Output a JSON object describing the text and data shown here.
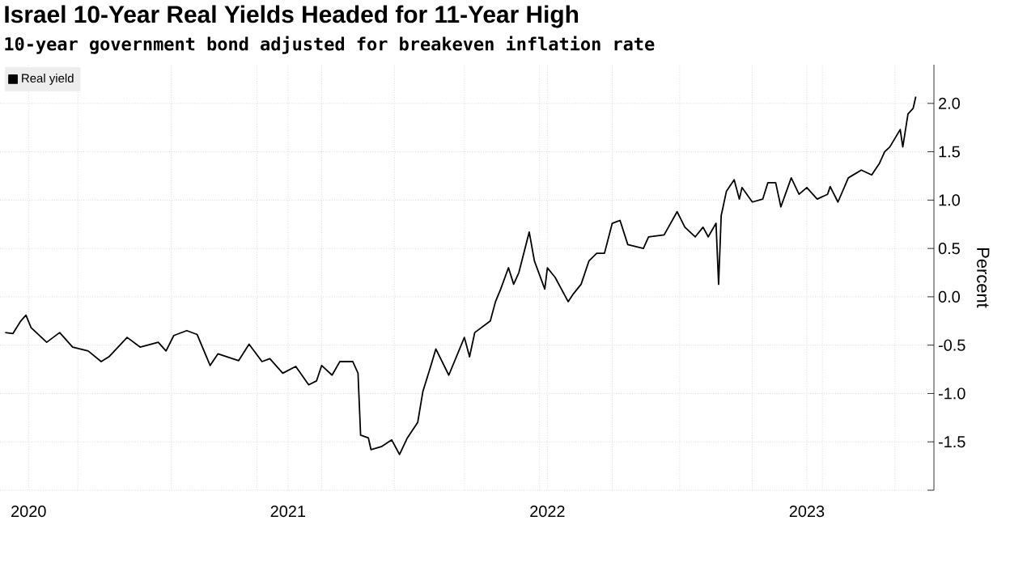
{
  "chart_data": {
    "type": "line",
    "title": "Israel 10-Year Real Yields Headed for 11-Year High",
    "subtitle": "10-year government bond adjusted for breakeven inflation rate",
    "ylabel": "Percent",
    "xlim": [
      2019.89,
      2023.49
    ],
    "ylim": [
      -2.0,
      2.4
    ],
    "xticks": [
      {
        "value": 2020.0,
        "label": "2020"
      },
      {
        "value": 2020.19,
        "label": null
      },
      {
        "value": 2020.55,
        "label": null
      },
      {
        "value": 2020.88,
        "label": null
      },
      {
        "value": 2021.0,
        "label": "2021"
      },
      {
        "value": 2021.13,
        "label": null
      },
      {
        "value": 2021.41,
        "label": null
      },
      {
        "value": 2021.68,
        "label": null
      },
      {
        "value": 2021.97,
        "label": null
      },
      {
        "value": 2022.0,
        "label": "2022"
      },
      {
        "value": 2022.25,
        "label": null
      },
      {
        "value": 2022.51,
        "label": null
      },
      {
        "value": 2022.79,
        "label": null
      },
      {
        "value": 2023.0,
        "label": "2023"
      },
      {
        "value": 2023.06,
        "label": null
      },
      {
        "value": 2023.34,
        "label": null
      }
    ],
    "yticks": [
      {
        "value": -2.0,
        "label": null
      },
      {
        "value": -1.5,
        "label": "-1.5"
      },
      {
        "value": -1.0,
        "label": "-1.0"
      },
      {
        "value": -0.5,
        "label": "-0.5"
      },
      {
        "value": 0.0,
        "label": "0.0"
      },
      {
        "value": 0.5,
        "label": "0.5"
      },
      {
        "value": 1.0,
        "label": "1.0"
      },
      {
        "value": 1.5,
        "label": "1.5"
      },
      {
        "value": 2.0,
        "label": "2.0"
      }
    ],
    "grid": true,
    "legend": "top left",
    "series": [
      {
        "name": "Real yield",
        "color": "#000000",
        "x": [
          2019.91,
          2019.94,
          2019.97,
          2019.99,
          2020.01,
          2020.07,
          2020.12,
          2020.17,
          2020.23,
          2020.28,
          2020.31,
          2020.38,
          2020.43,
          2020.5,
          2020.53,
          2020.56,
          2020.61,
          2020.65,
          2020.7,
          2020.73,
          2020.81,
          2020.85,
          2020.9,
          2020.93,
          2020.98,
          2021.03,
          2021.08,
          2021.11,
          2021.13,
          2021.17,
          2021.2,
          2021.25,
          2021.27,
          2021.28,
          2021.31,
          2021.32,
          2021.36,
          2021.4,
          2021.43,
          2021.46,
          2021.5,
          2021.52,
          2021.55,
          2021.57,
          2021.62,
          2021.68,
          2021.7,
          2021.72,
          2021.78,
          2021.8,
          2021.82,
          2021.85,
          2021.87,
          2021.89,
          2021.93,
          2021.95,
          2021.99,
          2022.0,
          2022.03,
          2022.08,
          2022.1,
          2022.13,
          2022.16,
          2022.19,
          2022.22,
          2022.25,
          2022.28,
          2022.31,
          2022.37,
          2022.39,
          2022.45,
          2022.5,
          2022.53,
          2022.57,
          2022.6,
          2022.62,
          2022.65,
          2022.66,
          2022.67,
          2022.69,
          2022.72,
          2022.74,
          2022.75,
          2022.79,
          2022.83,
          2022.85,
          2022.88,
          2022.9,
          2022.94,
          2022.97,
          2023.0,
          2023.04,
          2023.08,
          2023.09,
          2023.12,
          2023.16,
          2023.21,
          2023.25,
          2023.28,
          2023.3,
          2023.32,
          2023.36,
          2023.37,
          2023.39,
          2023.41,
          2023.42
        ],
        "values": [
          -0.37,
          -0.38,
          -0.25,
          -0.19,
          -0.32,
          -0.47,
          -0.37,
          -0.52,
          -0.56,
          -0.67,
          -0.62,
          -0.42,
          -0.52,
          -0.47,
          -0.56,
          -0.4,
          -0.35,
          -0.39,
          -0.71,
          -0.59,
          -0.66,
          -0.49,
          -0.67,
          -0.64,
          -0.79,
          -0.72,
          -0.91,
          -0.87,
          -0.71,
          -0.81,
          -0.67,
          -0.67,
          -0.79,
          -1.43,
          -1.46,
          -1.58,
          -1.55,
          -1.48,
          -1.63,
          -1.46,
          -1.3,
          -0.98,
          -0.72,
          -0.54,
          -0.81,
          -0.42,
          -0.62,
          -0.37,
          -0.25,
          -0.05,
          0.08,
          0.3,
          0.13,
          0.25,
          0.67,
          0.37,
          0.08,
          0.3,
          0.2,
          -0.05,
          0.03,
          0.13,
          0.37,
          0.45,
          0.45,
          0.76,
          0.79,
          0.54,
          0.5,
          0.62,
          0.64,
          0.88,
          0.72,
          0.62,
          0.72,
          0.62,
          0.76,
          0.13,
          0.84,
          1.09,
          1.21,
          1.01,
          1.13,
          0.98,
          1.01,
          1.18,
          1.18,
          0.93,
          1.23,
          1.06,
          1.13,
          1.01,
          1.06,
          1.14,
          0.98,
          1.23,
          1.31,
          1.26,
          1.38,
          1.5,
          1.55,
          1.73,
          1.55,
          1.89,
          1.95,
          2.07
        ]
      }
    ]
  }
}
